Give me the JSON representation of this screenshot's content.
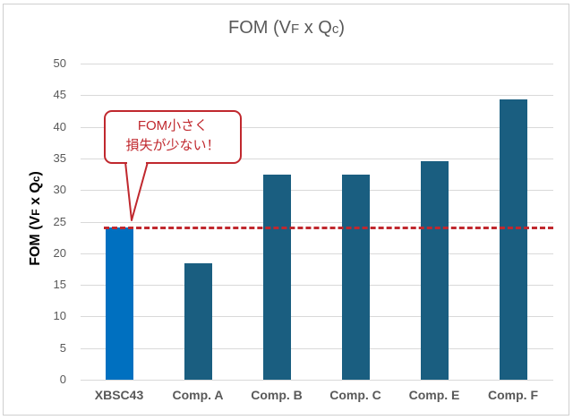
{
  "chart_data": {
    "type": "bar",
    "title": "FOM (VF x Qc)",
    "xlabel": "",
    "ylabel": "FOM (VF x Qc)",
    "ylim": [
      0,
      50
    ],
    "yticks": [
      0,
      5,
      10,
      15,
      20,
      25,
      30,
      35,
      40,
      45,
      50
    ],
    "grid": true,
    "legend": null,
    "categories": [
      "XBSC43",
      "Comp. A",
      "Comp. B",
      "Comp. C",
      "Comp. E",
      "Comp. F"
    ],
    "values": [
      24.1,
      18.4,
      32.5,
      32.5,
      34.6,
      44.4
    ],
    "bar_colors": [
      "#0070c0",
      "#1a5e80",
      "#1a5e80",
      "#1a5e80",
      "#1a5e80",
      "#1a5e80"
    ],
    "reference_line": {
      "value": 24.1,
      "style": "dashed",
      "color": "#c0282e"
    },
    "annotation": {
      "text_line1": "FOM小さく",
      "text_line2": "損失が少ない！",
      "points_to": "XBSC43",
      "color": "#c0282e"
    }
  },
  "title": {
    "main": "FOM (V",
    "sub1": "F",
    "mid": " x Q",
    "sub2": "c",
    "end": ")"
  },
  "ylabel": {
    "main": "FOM (V",
    "sub1": "F",
    "mid": " x Q",
    "sub2": "c",
    "end": ")"
  }
}
